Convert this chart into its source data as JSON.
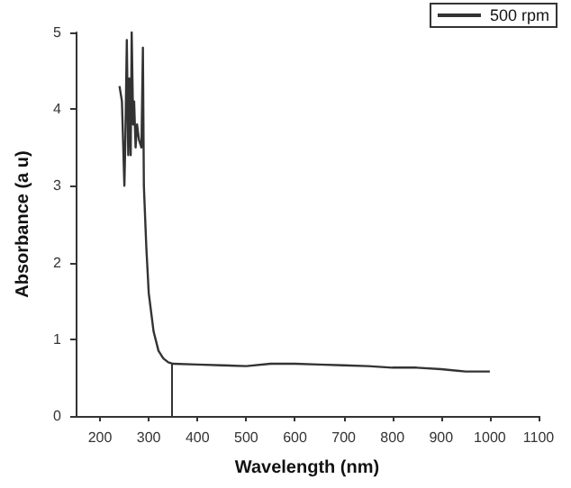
{
  "chart_data": {
    "type": "line",
    "xlabel": "Wavelength (nm)",
    "ylabel": "Absorbance (a u)",
    "series": [
      {
        "name": "500 rpm",
        "color": "#333333",
        "x": [
          240,
          245,
          250,
          252,
          255,
          258,
          260,
          263,
          265,
          268,
          270,
          273,
          276,
          280,
          285,
          288,
          290,
          295,
          300,
          310,
          320,
          330,
          340,
          350,
          400,
          450,
          500,
          550,
          600,
          650,
          700,
          750,
          800,
          850,
          900,
          950,
          1000
        ],
        "values": [
          4.3,
          4.1,
          3.0,
          3.6,
          4.9,
          3.4,
          4.4,
          3.4,
          5.0,
          3.8,
          4.1,
          3.5,
          3.8,
          3.6,
          3.5,
          4.8,
          3.0,
          2.2,
          1.6,
          1.1,
          0.85,
          0.75,
          0.7,
          0.68,
          0.67,
          0.66,
          0.65,
          0.68,
          0.68,
          0.67,
          0.66,
          0.65,
          0.63,
          0.63,
          0.61,
          0.58,
          0.58
        ]
      }
    ],
    "xlim": [
      150,
      1100
    ],
    "xticks": [
      200,
      300,
      400,
      500,
      600,
      700,
      800,
      900,
      1000,
      1100
    ],
    "ylim": [
      0,
      5
    ],
    "yticks": [
      0,
      1,
      2,
      3,
      4,
      5
    ],
    "ref_lines": [
      {
        "axis": "x",
        "value": 345
      }
    ],
    "grid": false,
    "legend": "top right",
    "marker": "none",
    "line_style": "solid"
  }
}
